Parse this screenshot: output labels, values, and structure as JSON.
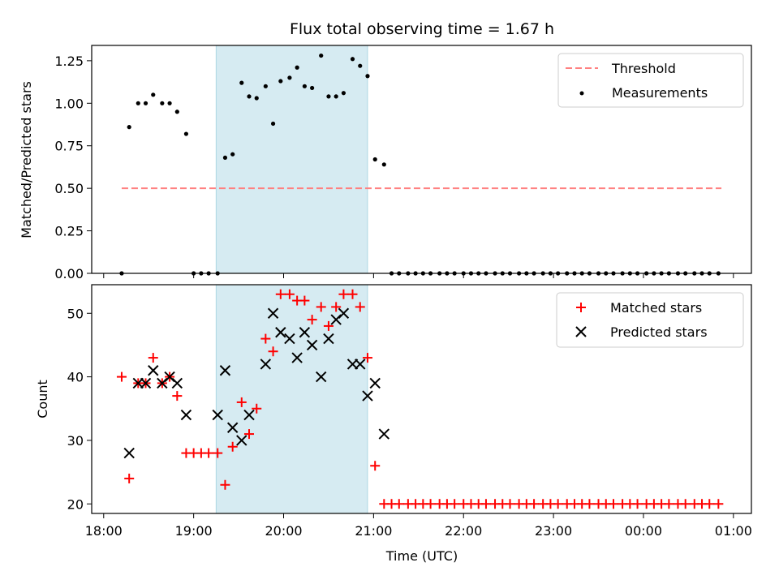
{
  "chart_data": [
    {
      "type": "scatter",
      "title": "Flux total observing time = 1.67 h",
      "xlabel": "",
      "ylabel": "Matched/Predicted stars",
      "ylim": [
        0,
        1.34
      ],
      "yticks": [
        "0.00",
        "0.25",
        "0.50",
        "0.75",
        "1.00",
        "1.25"
      ],
      "ytick_values": [
        0,
        0.25,
        0.5,
        0.75,
        1.0,
        1.25
      ],
      "shaded_region": {
        "from": "19:15",
        "to": "20:56",
        "color": "#add8e6"
      },
      "threshold": {
        "name": "Threshold",
        "value": 0.5,
        "x_from": "18:12",
        "x_to": "00:52",
        "color": "#ff8080"
      },
      "legend_position": "top-right",
      "series": [
        {
          "name": "Measurements",
          "x": [
            "18:12",
            "18:17",
            "18:23",
            "18:28",
            "18:33",
            "18:39",
            "18:44",
            "18:49",
            "18:55",
            "19:00",
            "19:05",
            "19:10",
            "19:16",
            "19:21",
            "19:26",
            "19:32",
            "19:37",
            "19:42",
            "19:48",
            "19:53",
            "19:58",
            "20:04",
            "20:09",
            "20:14",
            "20:19",
            "20:25",
            "20:30",
            "20:35",
            "20:40",
            "20:46",
            "20:51",
            "20:56",
            "21:01",
            "21:07",
            "21:12",
            "21:17",
            "21:23",
            "21:28",
            "21:33",
            "21:38",
            "21:44",
            "21:49",
            "21:54",
            "22:00",
            "22:05",
            "22:10",
            "22:15",
            "22:21",
            "22:26",
            "22:31",
            "22:37",
            "22:42",
            "22:47",
            "22:53",
            "22:58",
            "23:03",
            "23:09",
            "23:14",
            "23:19",
            "23:24",
            "23:30",
            "23:35",
            "23:40",
            "23:46",
            "23:51",
            "23:56",
            "00:02",
            "00:07",
            "00:12",
            "00:17",
            "00:23",
            "00:28",
            "00:34",
            "00:39",
            "00:44",
            "00:50"
          ],
          "values": [
            0.0,
            0.86,
            1.0,
            1.0,
            1.05,
            1.0,
            1.0,
            0.95,
            0.82,
            0.0,
            0.0,
            0.0,
            0.0,
            0.68,
            0.7,
            1.12,
            1.04,
            1.03,
            1.1,
            0.88,
            1.13,
            1.15,
            1.21,
            1.1,
            1.09,
            1.28,
            1.04,
            1.04,
            1.06,
            1.26,
            1.22,
            1.16,
            0.67,
            0.64,
            0.0,
            0.0,
            0.0,
            0.0,
            0.0,
            0.0,
            0.0,
            0.0,
            0.0,
            0.0,
            0.0,
            0.0,
            0.0,
            0.0,
            0.0,
            0.0,
            0.0,
            0.0,
            0.0,
            0.0,
            0.0,
            0.0,
            0.0,
            0.0,
            0.0,
            0.0,
            0.0,
            0.0,
            0.0,
            0.0,
            0.0,
            0.0,
            0.0,
            0.0,
            0.0,
            0.0,
            0.0,
            0.0,
            0.0,
            0.0,
            0.0,
            0.0
          ],
          "color": "#000000"
        }
      ]
    },
    {
      "type": "scatter",
      "xlabel": "Time (UTC)",
      "ylabel": "Count",
      "ylim": [
        18.5,
        54.5
      ],
      "yticks": [
        "20",
        "30",
        "40",
        "50"
      ],
      "ytick_values": [
        20,
        30,
        40,
        50
      ],
      "xticks": [
        "18:00",
        "19:00",
        "20:00",
        "21:00",
        "22:00",
        "23:00",
        "00:00",
        "01:00"
      ],
      "xlim": [
        "17:52",
        "01:12"
      ],
      "shaded_region": {
        "from": "19:15",
        "to": "20:56",
        "color": "#add8e6"
      },
      "legend_position": "top-right",
      "series": [
        {
          "name": "Matched stars",
          "marker": "+",
          "color": "#ff0000",
          "x": [
            "18:12",
            "18:17",
            "18:23",
            "18:28",
            "18:33",
            "18:39",
            "18:44",
            "18:49",
            "18:55",
            "19:00",
            "19:05",
            "19:10",
            "19:16",
            "19:21",
            "19:26",
            "19:32",
            "19:37",
            "19:42",
            "19:48",
            "19:53",
            "19:58",
            "20:04",
            "20:09",
            "20:14",
            "20:19",
            "20:25",
            "20:30",
            "20:35",
            "20:40",
            "20:46",
            "20:51",
            "20:56",
            "21:01",
            "21:07",
            "21:12",
            "21:17",
            "21:23",
            "21:28",
            "21:33",
            "21:38",
            "21:44",
            "21:49",
            "21:54",
            "22:00",
            "22:05",
            "22:10",
            "22:15",
            "22:21",
            "22:26",
            "22:31",
            "22:37",
            "22:42",
            "22:47",
            "22:53",
            "22:58",
            "23:03",
            "23:09",
            "23:14",
            "23:19",
            "23:24",
            "23:30",
            "23:35",
            "23:40",
            "23:46",
            "23:51",
            "23:56",
            "00:02",
            "00:07",
            "00:12",
            "00:17",
            "00:23",
            "00:28",
            "00:34",
            "00:39",
            "00:44",
            "00:50"
          ],
          "values": [
            40,
            24,
            39,
            39,
            43,
            39,
            40,
            37,
            28,
            28,
            28,
            28,
            28,
            23,
            29,
            36,
            31,
            35,
            46,
            44,
            53,
            53,
            52,
            52,
            49,
            51,
            48,
            51,
            53,
            53,
            51,
            43,
            26,
            20,
            20,
            20,
            20,
            20,
            20,
            20,
            20,
            20,
            20,
            20,
            20,
            20,
            20,
            20,
            20,
            20,
            20,
            20,
            20,
            20,
            20,
            20,
            20,
            20,
            20,
            20,
            20,
            20,
            20,
            20,
            20,
            20,
            20,
            20,
            20,
            20,
            20,
            20,
            20,
            20,
            20,
            20
          ]
        },
        {
          "name": "Predicted stars",
          "marker": "x",
          "color": "#000000",
          "x": [
            "18:17",
            "18:23",
            "18:28",
            "18:33",
            "18:39",
            "18:44",
            "18:49",
            "18:55",
            "19:16",
            "19:21",
            "19:26",
            "19:32",
            "19:37",
            "19:48",
            "19:53",
            "19:58",
            "20:04",
            "20:09",
            "20:14",
            "20:19",
            "20:25",
            "20:30",
            "20:35",
            "20:40",
            "20:46",
            "20:51",
            "20:56",
            "21:01",
            "21:07"
          ],
          "values": [
            28,
            39,
            39,
            41,
            39,
            40,
            39,
            34,
            34,
            41,
            32,
            30,
            34,
            42,
            50,
            47,
            46,
            43,
            47,
            45,
            40,
            46,
            49,
            50,
            42,
            42,
            37,
            39,
            31
          ]
        }
      ]
    }
  ]
}
